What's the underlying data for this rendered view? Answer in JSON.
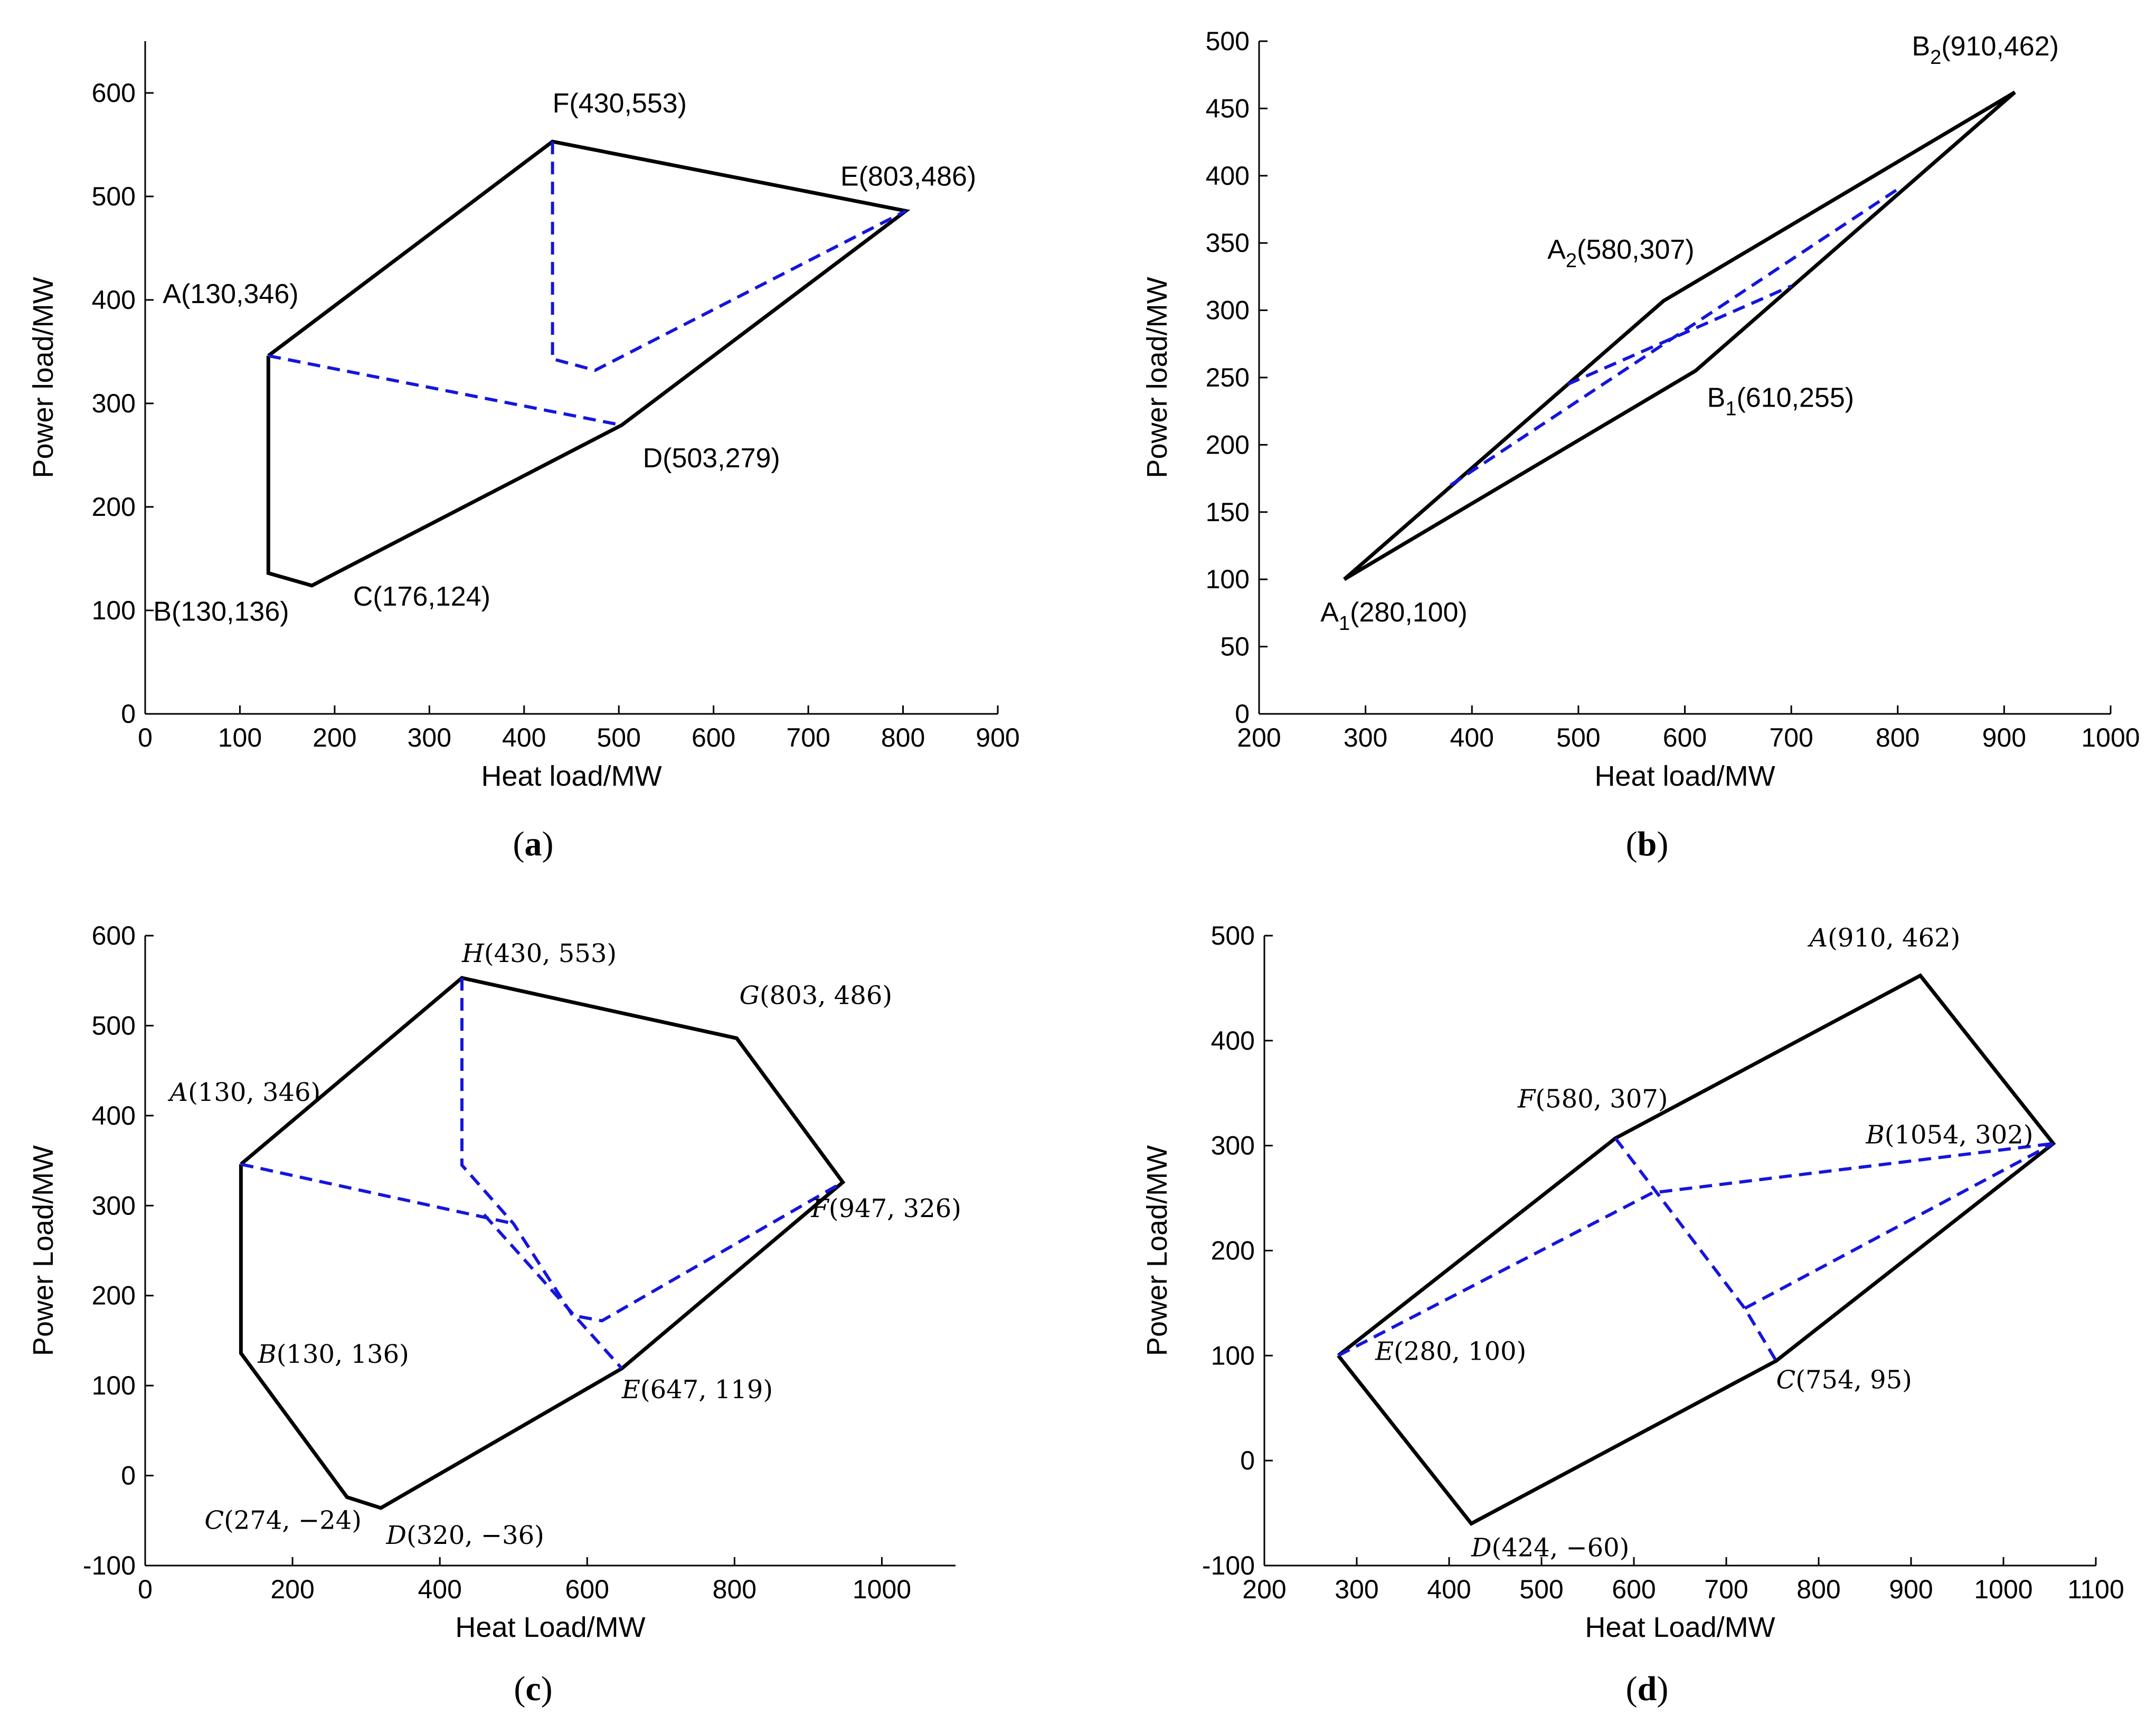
{
  "chart_data": [
    {
      "id": "a",
      "type": "line",
      "caption_letter": "a",
      "xlabel": "Heat load/MW",
      "ylabel": "Power load/MW",
      "xlim": [
        0,
        900
      ],
      "ylim": [
        0,
        650
      ],
      "xticks": [
        0,
        100,
        200,
        300,
        400,
        500,
        600,
        700,
        800,
        900
      ],
      "yticks": [
        0,
        100,
        200,
        300,
        400,
        500,
        600
      ],
      "xtick_labels": [
        "0",
        "100",
        "200",
        "300",
        "400",
        "500",
        "600",
        "700",
        "800",
        "900"
      ],
      "ytick_labels": [
        "0",
        "100",
        "200",
        "300",
        "400",
        "500",
        "600"
      ],
      "label_style": "sans",
      "boundary": {
        "x": [
          130,
          430,
          803,
          503,
          176,
          130,
          130
        ],
        "y": [
          346,
          553,
          486,
          279,
          124,
          136,
          346
        ],
        "color": "#000000"
      },
      "dashed": [
        {
          "x": [
            130,
            503
          ],
          "y": [
            346,
            279
          ],
          "color": "#1515dd"
        },
        {
          "x": [
            430,
            430,
            475,
            803
          ],
          "y": [
            553,
            343,
            332,
            486
          ],
          "color": "#1515dd"
        }
      ],
      "points": [
        {
          "name": "A",
          "x": 130,
          "y": 346,
          "text": "A(130,346)"
        },
        {
          "name": "B",
          "x": 130,
          "y": 136,
          "text": "B(130,136)"
        },
        {
          "name": "C",
          "x": 176,
          "y": 124,
          "text": "C(176,124)"
        },
        {
          "name": "D",
          "x": 503,
          "y": 279,
          "text": "D(503,279)"
        },
        {
          "name": "E",
          "x": 803,
          "y": 486,
          "text": "E(803,486)"
        },
        {
          "name": "F",
          "x": 430,
          "y": 553,
          "text": "F(430,553)"
        }
      ]
    },
    {
      "id": "b",
      "type": "line",
      "caption_letter": "b",
      "xlabel": "Heat load/MW",
      "ylabel": "Power load/MW",
      "xlim": [
        200,
        1000
      ],
      "ylim": [
        0,
        500
      ],
      "xticks": [
        200,
        300,
        400,
        500,
        600,
        700,
        800,
        900,
        1000
      ],
      "yticks": [
        0,
        50,
        100,
        150,
        200,
        250,
        300,
        350,
        400,
        450,
        500
      ],
      "xtick_labels": [
        "200",
        "300",
        "400",
        "500",
        "600",
        "700",
        "800",
        "900",
        "1000"
      ],
      "ytick_labels": [
        "0",
        "50",
        "100",
        "150",
        "200",
        "250",
        "300",
        "350",
        "400",
        "450",
        "500"
      ],
      "label_style": "sans",
      "boundary": {
        "x": [
          280,
          580,
          910,
          610,
          280
        ],
        "y": [
          100,
          307,
          462,
          255,
          100
        ],
        "color": "#000000"
      },
      "dashed": [
        {
          "x": [
            380,
            800
          ],
          "y": [
            170,
            390
          ],
          "color": "#1515dd"
        },
        {
          "x": [
            490,
            700
          ],
          "y": [
            245,
            318
          ],
          "color": "#1515dd"
        }
      ],
      "points": [
        {
          "name": "A1",
          "x": 280,
          "y": 100,
          "main": "A",
          "sub": "1",
          "coords": "(280,100)"
        },
        {
          "name": "A2",
          "x": 580,
          "y": 307,
          "main": "A",
          "sub": "2",
          "coords": "(580,307)"
        },
        {
          "name": "B1",
          "x": 610,
          "y": 255,
          "main": "B",
          "sub": "1",
          "coords": "(610,255)"
        },
        {
          "name": "B2",
          "x": 910,
          "y": 462,
          "main": "B",
          "sub": "2",
          "coords": "(910,462)"
        }
      ]
    },
    {
      "id": "c",
      "type": "line",
      "caption_letter": "c",
      "xlabel": "Heat Load/MW",
      "ylabel": "Power Load/MW",
      "xlim": [
        0,
        1100
      ],
      "ylim": [
        -100,
        600
      ],
      "xticks": [
        0,
        200,
        400,
        600,
        800,
        1000
      ],
      "yticks": [
        -100,
        0,
        100,
        200,
        300,
        400,
        500,
        600
      ],
      "xtick_labels": [
        "0",
        "200",
        "400",
        "600",
        "800",
        "1000"
      ],
      "ytick_labels": [
        "-100",
        "0",
        "100",
        "200",
        "300",
        "400",
        "500",
        "600"
      ],
      "label_style": "serif",
      "boundary": {
        "x": [
          130,
          430,
          803,
          947,
          647,
          320,
          274,
          130,
          130
        ],
        "y": [
          346,
          553,
          486,
          326,
          119,
          -36,
          -24,
          136,
          346
        ],
        "color": "#000000"
      },
      "dashed": [
        {
          "x": [
            130,
            500
          ],
          "y": [
            346,
            280
          ],
          "color": "#1515dd"
        },
        {
          "x": [
            430,
            430,
            500,
            580,
            620,
            947
          ],
          "y": [
            553,
            345,
            280,
            178,
            172,
            326
          ],
          "color": "#1515dd"
        },
        {
          "x": [
            460,
            647
          ],
          "y": [
            290,
            119
          ],
          "color": "#1515dd"
        }
      ],
      "points": [
        {
          "name": "A",
          "x": 130,
          "y": 346,
          "text": "A(130, 346)"
        },
        {
          "name": "B",
          "x": 130,
          "y": 136,
          "text": "B(130, 136)"
        },
        {
          "name": "C",
          "x": 274,
          "y": -24,
          "text": "C(274, −24)"
        },
        {
          "name": "D",
          "x": 320,
          "y": -36,
          "text": "D(320, −36)"
        },
        {
          "name": "E",
          "x": 647,
          "y": 119,
          "text": "E(647, 119)"
        },
        {
          "name": "F",
          "x": 947,
          "y": 326,
          "text": "F(947, 326)"
        },
        {
          "name": "G",
          "x": 803,
          "y": 486,
          "text": "G(803, 486)"
        },
        {
          "name": "H",
          "x": 430,
          "y": 553,
          "text": "H(430, 553)"
        }
      ]
    },
    {
      "id": "d",
      "type": "line",
      "caption_letter": "d",
      "xlabel": "Heat Load/MW",
      "ylabel": "Power Load/MW",
      "xlim": [
        200,
        1100
      ],
      "ylim": [
        -100,
        500
      ],
      "xticks": [
        200,
        300,
        400,
        500,
        600,
        700,
        800,
        900,
        1000,
        1100
      ],
      "yticks": [
        -100,
        0,
        100,
        200,
        300,
        400,
        500
      ],
      "xtick_labels": [
        "200",
        "300",
        "400",
        "500",
        "600",
        "700",
        "800",
        "900",
        "1000",
        "1100"
      ],
      "ytick_labels": [
        "-100",
        "0",
        "100",
        "200",
        "300",
        "400",
        "500"
      ],
      "label_style": "serif",
      "boundary": {
        "x": [
          280,
          580,
          910,
          1054,
          754,
          424,
          280
        ],
        "y": [
          100,
          307,
          462,
          302,
          95,
          -60,
          100
        ],
        "color": "#000000"
      },
      "dashed": [
        {
          "x": [
            280,
            620,
            1054
          ],
          "y": [
            100,
            255,
            302
          ],
          "color": "#1515dd"
        },
        {
          "x": [
            580,
            720,
            754
          ],
          "y": [
            307,
            145,
            95
          ],
          "color": "#1515dd"
        },
        {
          "x": [
            720,
            1054
          ],
          "y": [
            145,
            302
          ],
          "color": "#1515dd"
        }
      ],
      "points": [
        {
          "name": "A",
          "x": 910,
          "y": 462,
          "text": "A(910, 462)"
        },
        {
          "name": "B",
          "x": 1054,
          "y": 302,
          "text": "B(1054, 302)"
        },
        {
          "name": "C",
          "x": 754,
          "y": 95,
          "text": "C(754, 95)"
        },
        {
          "name": "D",
          "x": 424,
          "y": -60,
          "text": "D(424, −60)"
        },
        {
          "name": "E",
          "x": 280,
          "y": 100,
          "text": "E(280, 100)"
        },
        {
          "name": "F",
          "x": 580,
          "y": 307,
          "text": "F(580, 307)"
        }
      ]
    }
  ]
}
